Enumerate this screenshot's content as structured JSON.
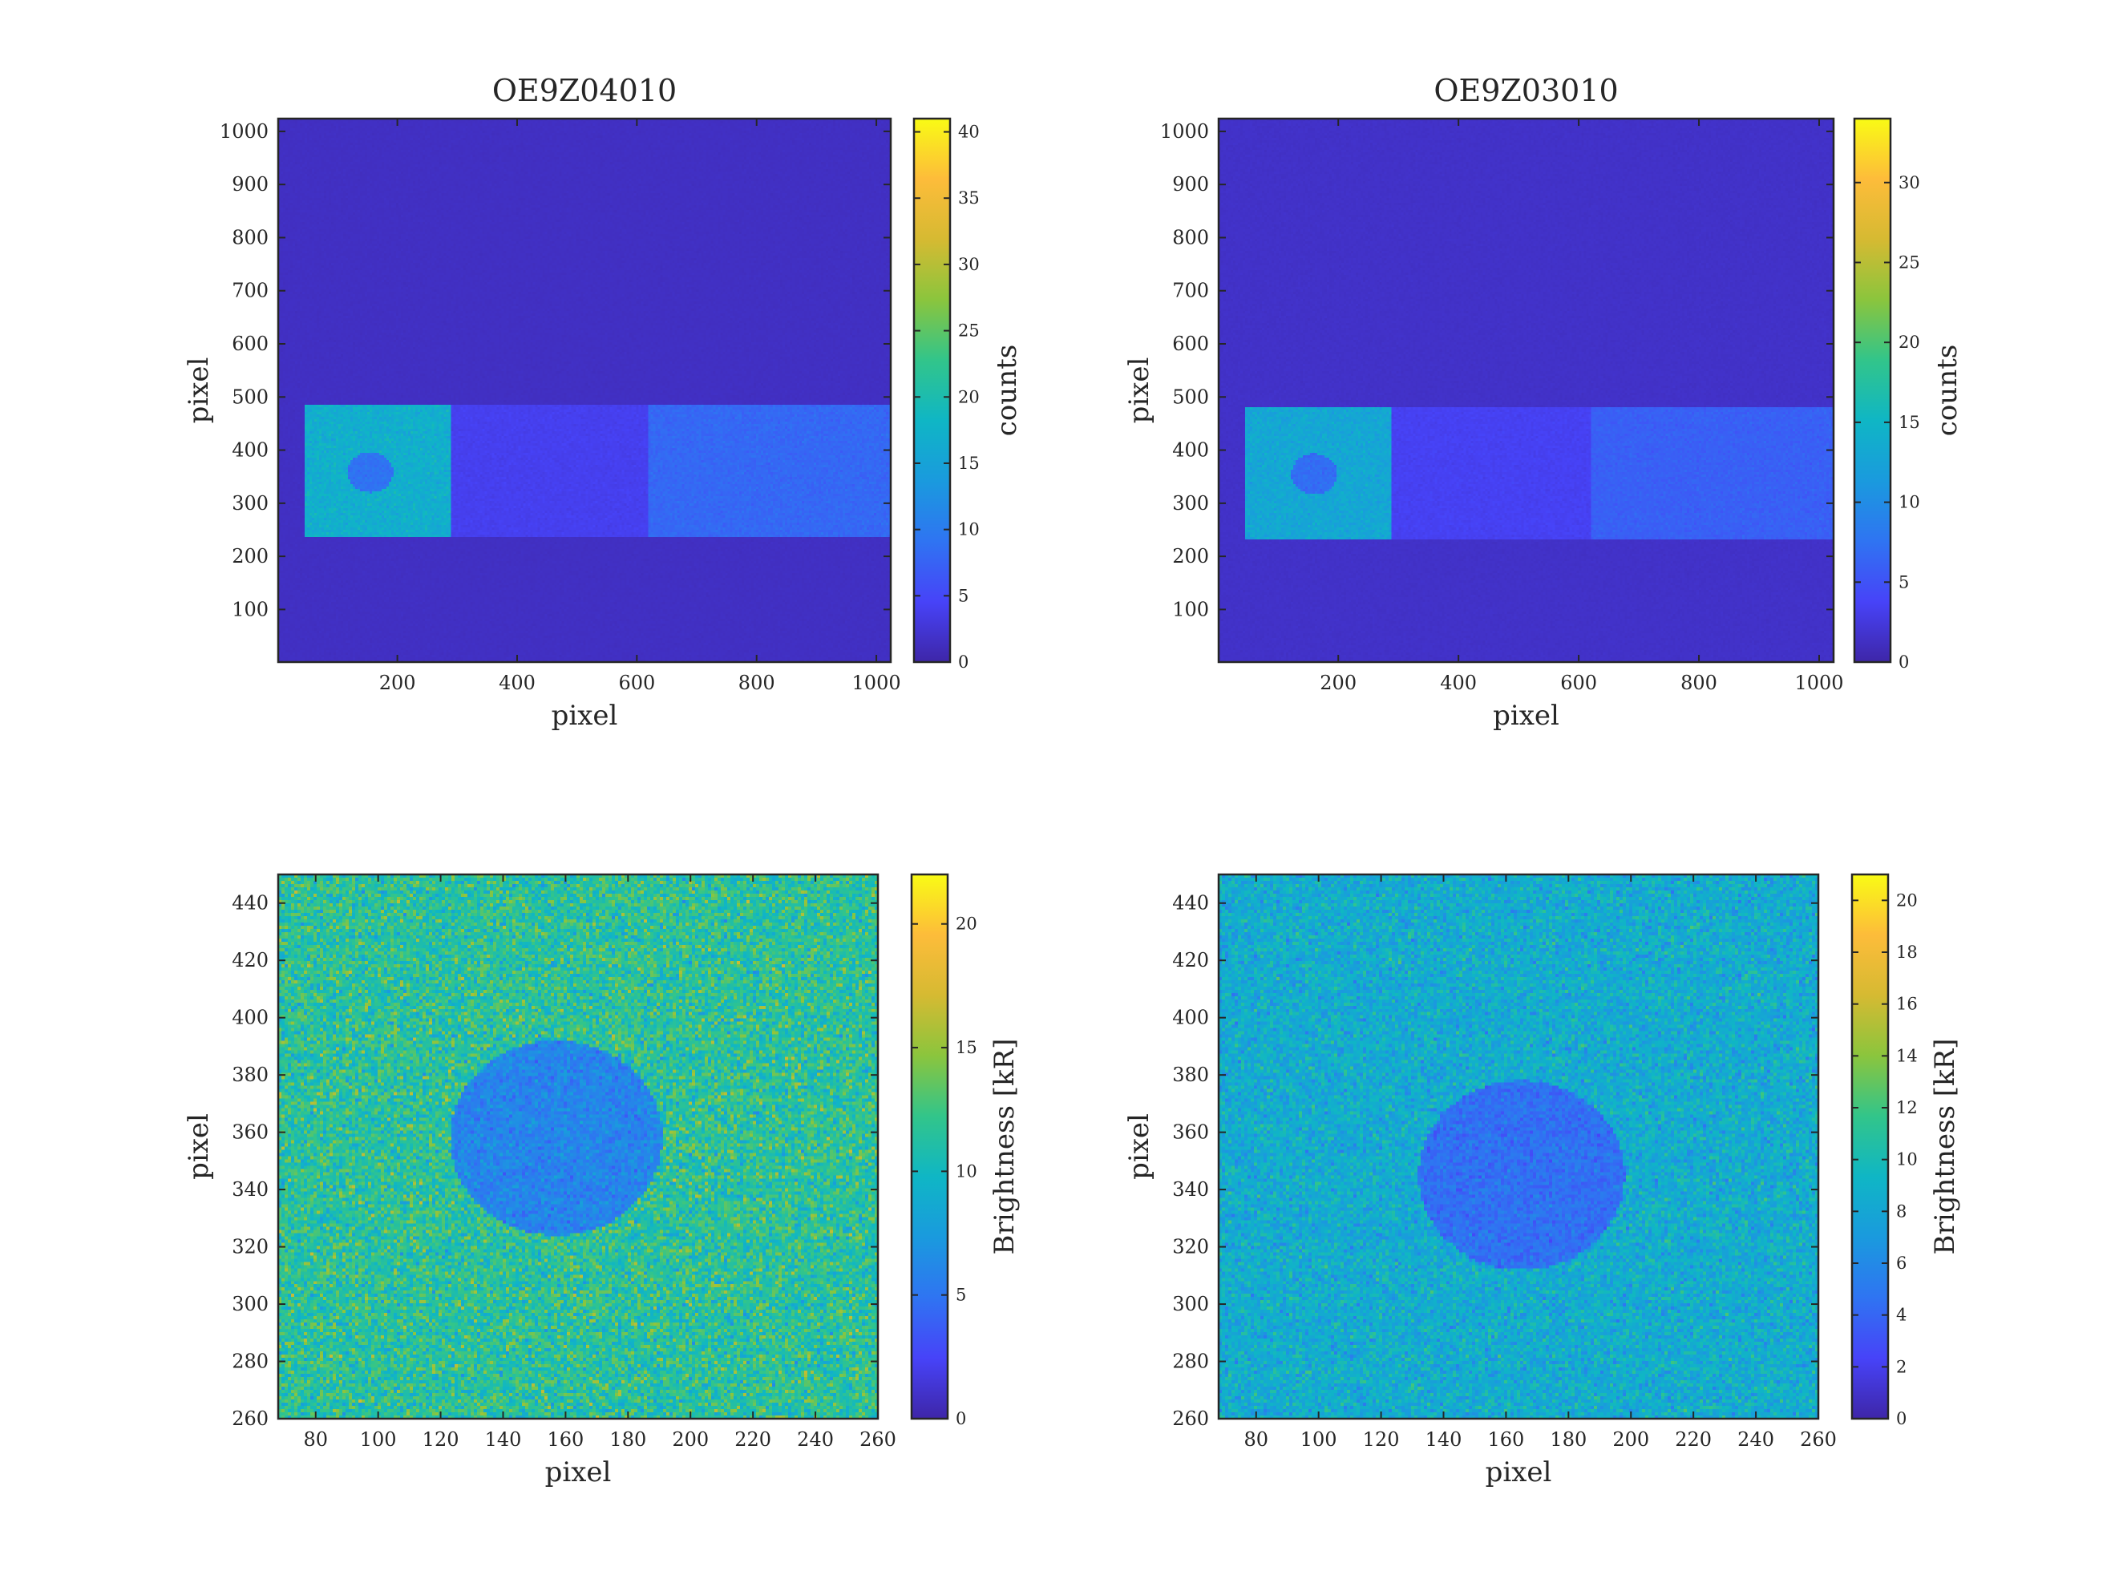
{
  "colormap": [
    "#3e26a8",
    "#4743f8",
    "#2f74f2",
    "#1a9ade",
    "#0fb6c5",
    "#32c58a",
    "#8bc53d",
    "#d6ba32",
    "#fdbc3a",
    "#f9fb15"
  ],
  "chart_data": [
    {
      "type": "heatmap",
      "title": "OE9Z04010",
      "xlabel": "pixel",
      "ylabel": "pixel",
      "xlim": [
        1,
        1024
      ],
      "ylim": [
        1,
        1024
      ],
      "xticks": [
        200,
        400,
        600,
        800,
        1000
      ],
      "yticks": [
        100,
        200,
        300,
        400,
        500,
        600,
        700,
        800,
        900,
        1000
      ],
      "colorbar": {
        "label": "counts",
        "range": [
          0,
          41
        ],
        "ticks": [
          0,
          5,
          10,
          15,
          20,
          25,
          30,
          35,
          40
        ]
      },
      "background": 1.5,
      "regions": [
        {
          "shape": "rect",
          "x": [
            45,
            290
          ],
          "y": [
            235,
            485
          ],
          "value": 17
        },
        {
          "shape": "rect",
          "x": [
            290,
            620
          ],
          "y": [
            235,
            485
          ],
          "value": 4
        },
        {
          "shape": "rect",
          "x": [
            620,
            1024
          ],
          "y": [
            235,
            485
          ],
          "value": 8
        },
        {
          "shape": "circle",
          "center": [
            155,
            358
          ],
          "radius": 38,
          "value": 9
        }
      ]
    },
    {
      "type": "heatmap",
      "title": "OE9Z03010",
      "xlabel": "pixel",
      "ylabel": "pixel",
      "xlim": [
        1,
        1024
      ],
      "ylim": [
        1,
        1024
      ],
      "xticks": [
        200,
        400,
        600,
        800,
        1000
      ],
      "yticks": [
        100,
        200,
        300,
        400,
        500,
        600,
        700,
        800,
        900,
        1000
      ],
      "colorbar": {
        "label": "counts",
        "range": [
          0,
          34
        ],
        "ticks": [
          0,
          5,
          10,
          15,
          20,
          25,
          30
        ]
      },
      "background": 1.5,
      "regions": [
        {
          "shape": "rect",
          "x": [
            45,
            290
          ],
          "y": [
            232,
            480
          ],
          "value": 13
        },
        {
          "shape": "rect",
          "x": [
            290,
            620
          ],
          "y": [
            232,
            480
          ],
          "value": 3.5
        },
        {
          "shape": "rect",
          "x": [
            620,
            1024
          ],
          "y": [
            232,
            480
          ],
          "value": 6
        },
        {
          "shape": "circle",
          "center": [
            160,
            355
          ],
          "radius": 38,
          "value": 7
        }
      ]
    },
    {
      "type": "heatmap",
      "title": "",
      "xlabel": "pixel",
      "ylabel": "pixel",
      "xlim": [
        68,
        260
      ],
      "ylim": [
        260,
        450
      ],
      "xticks": [
        80,
        100,
        120,
        140,
        160,
        180,
        200,
        220,
        240,
        260
      ],
      "yticks": [
        260,
        280,
        300,
        320,
        340,
        360,
        380,
        400,
        420,
        440
      ],
      "colorbar": {
        "label": "Brightness [kR]",
        "range": [
          0,
          22
        ],
        "ticks": [
          0,
          5,
          10,
          15,
          20
        ]
      },
      "background": 11.5,
      "regions": [
        {
          "shape": "circle",
          "center": [
            157,
            358
          ],
          "radius": 34,
          "value": 6
        }
      ]
    },
    {
      "type": "heatmap",
      "title": "",
      "xlabel": "pixel",
      "ylabel": "pixel",
      "xlim": [
        68,
        260
      ],
      "ylim": [
        260,
        450
      ],
      "xticks": [
        80,
        100,
        120,
        140,
        160,
        180,
        200,
        220,
        240,
        260
      ],
      "yticks": [
        260,
        280,
        300,
        320,
        340,
        360,
        380,
        400,
        420,
        440
      ],
      "colorbar": {
        "label": "Brightness [kR]",
        "range": [
          0,
          21
        ],
        "ticks": [
          0,
          2,
          4,
          6,
          8,
          10,
          12,
          14,
          16,
          18,
          20
        ]
      },
      "background": 8.5,
      "regions": [
        {
          "shape": "circle",
          "center": [
            165,
            345
          ],
          "radius": 33,
          "value": 4.5
        }
      ]
    }
  ]
}
